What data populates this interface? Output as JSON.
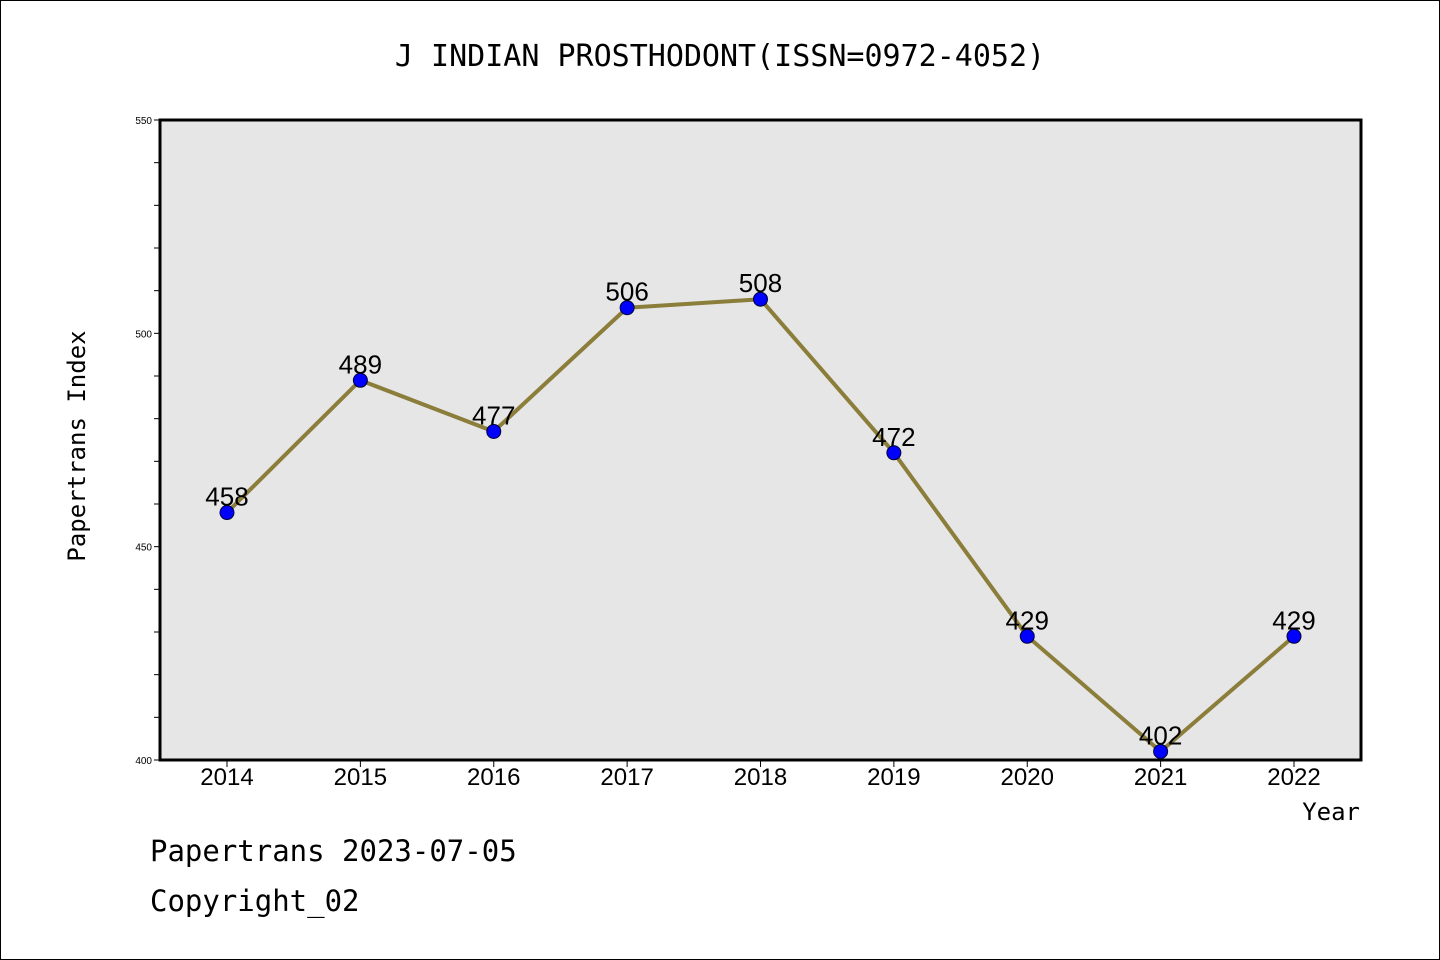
{
  "chart_data": {
    "type": "line",
    "title": "J INDIAN PROSTHODONT(ISSN=0972-4052)",
    "xlabel": "Year",
    "ylabel": "Papertrans Index",
    "categories": [
      "2014",
      "2015",
      "2016",
      "2017",
      "2018",
      "2019",
      "2020",
      "2021",
      "2022"
    ],
    "series": [
      {
        "values": [
          458,
          489,
          477,
          506,
          508,
          472,
          429,
          402,
          429
        ]
      }
    ],
    "ylim": [
      400,
      550
    ],
    "yticks": [
      "400",
      "450",
      "500",
      "550"
    ],
    "grid": false,
    "line_color": "#8b7d3a",
    "marker_color": "#0000ff",
    "background_color": "#e6e6e6"
  },
  "footer": {
    "line1": "Papertrans 2023-07-05",
    "line2": "Copyright_02"
  }
}
